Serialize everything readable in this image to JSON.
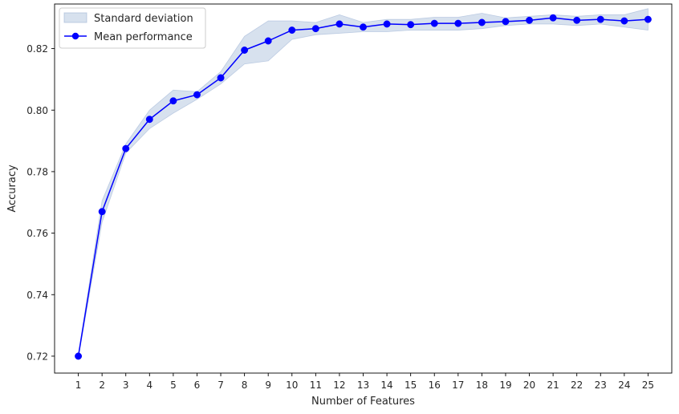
{
  "chart_data": {
    "type": "line",
    "title": "",
    "xlabel": "Number of Features",
    "ylabel": "Accuracy",
    "x": [
      1,
      2,
      3,
      4,
      5,
      6,
      7,
      8,
      9,
      10,
      11,
      12,
      13,
      14,
      15,
      16,
      17,
      18,
      19,
      20,
      21,
      22,
      23,
      24,
      25
    ],
    "xlim": [
      0,
      26
    ],
    "ylim": [
      0.7145,
      0.8345
    ],
    "yticks": [
      0.72,
      0.74,
      0.76,
      0.78,
      0.8,
      0.82
    ],
    "ytick_labels": [
      "0.72",
      "0.74",
      "0.76",
      "0.78",
      "0.80",
      "0.82"
    ],
    "grid": false,
    "legend_position": "upper-left",
    "colors": {
      "line": "#0000ff",
      "band": "#b0c4de",
      "band_edge": "#9fb4d6"
    },
    "series": [
      {
        "name": "Mean performance",
        "values": [
          0.72,
          0.767,
          0.7875,
          0.797,
          0.803,
          0.805,
          0.8105,
          0.8195,
          0.8225,
          0.826,
          0.8265,
          0.828,
          0.827,
          0.828,
          0.8278,
          0.8282,
          0.8282,
          0.8285,
          0.8288,
          0.8292,
          0.83,
          0.8292,
          0.8295,
          0.829,
          0.8295
        ]
      }
    ],
    "band": {
      "name": "Standard deviation",
      "lower": [
        0.7195,
        0.7635,
        0.786,
        0.794,
        0.799,
        0.8035,
        0.8085,
        0.815,
        0.816,
        0.823,
        0.8245,
        0.825,
        0.8255,
        0.8255,
        0.826,
        0.826,
        0.826,
        0.8265,
        0.8275,
        0.828,
        0.828,
        0.8275,
        0.828,
        0.827,
        0.826
      ],
      "upper": [
        0.7205,
        0.7705,
        0.789,
        0.8,
        0.8065,
        0.806,
        0.8125,
        0.824,
        0.829,
        0.829,
        0.8285,
        0.831,
        0.8285,
        0.8295,
        0.8295,
        0.8302,
        0.8302,
        0.8315,
        0.83,
        0.8305,
        0.831,
        0.8305,
        0.831,
        0.831,
        0.833
      ]
    }
  }
}
